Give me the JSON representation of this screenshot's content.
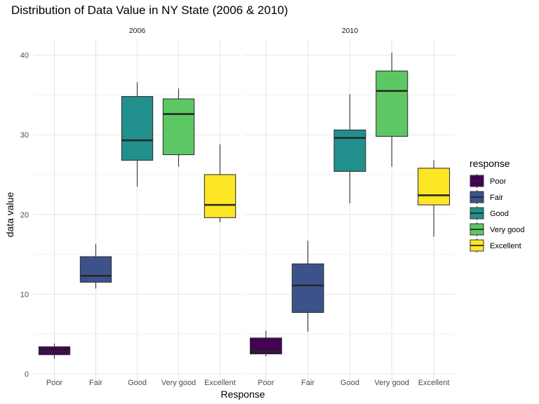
{
  "chart_data": {
    "type": "boxplot",
    "title": "Distribution of Data Value in NY State (2006 & 2010)",
    "xlabel": "Response",
    "ylabel": "data value",
    "ylim": [
      0,
      42
    ],
    "yticks": [
      0,
      10,
      20,
      30,
      40
    ],
    "grid": true,
    "legend_position": "right",
    "legend_title": "response",
    "categories": [
      "Poor",
      "Fair",
      "Good",
      "Very good",
      "Excellent"
    ],
    "colors": {
      "Poor": "#440154",
      "Fair": "#3B528B",
      "Good": "#21908C",
      "Very good": "#5DC863",
      "Excellent": "#FDE725"
    },
    "facets": [
      {
        "label": "2006",
        "boxes": [
          {
            "category": "Poor",
            "min": 1.9,
            "q1": 2.4,
            "median": 2.8,
            "q3": 3.4,
            "max": 3.8
          },
          {
            "category": "Fair",
            "min": 10.7,
            "q1": 11.5,
            "median": 12.3,
            "q3": 14.7,
            "max": 16.3
          },
          {
            "category": "Good",
            "min": 23.5,
            "q1": 26.8,
            "median": 29.3,
            "q3": 34.8,
            "max": 36.6
          },
          {
            "category": "Very good",
            "min": 26.0,
            "q1": 27.5,
            "median": 32.6,
            "q3": 34.5,
            "max": 35.8
          },
          {
            "category": "Excellent",
            "min": 19.0,
            "q1": 19.6,
            "median": 21.2,
            "q3": 25.0,
            "max": 28.8
          }
        ]
      },
      {
        "label": "2010",
        "boxes": [
          {
            "category": "Poor",
            "min": 2.2,
            "q1": 2.5,
            "median": 2.8,
            "q3": 4.5,
            "max": 5.4
          },
          {
            "category": "Fair",
            "min": 5.3,
            "q1": 7.7,
            "median": 11.1,
            "q3": 13.8,
            "max": 16.7
          },
          {
            "category": "Good",
            "min": 21.4,
            "q1": 25.4,
            "median": 29.6,
            "q3": 30.6,
            "max": 35.1
          },
          {
            "category": "Very good",
            "min": 26.0,
            "q1": 29.8,
            "median": 35.5,
            "q3": 38.0,
            "max": 40.3
          },
          {
            "category": "Excellent",
            "min": 17.2,
            "q1": 21.2,
            "median": 22.4,
            "q3": 25.8,
            "max": 26.8
          }
        ]
      }
    ]
  }
}
